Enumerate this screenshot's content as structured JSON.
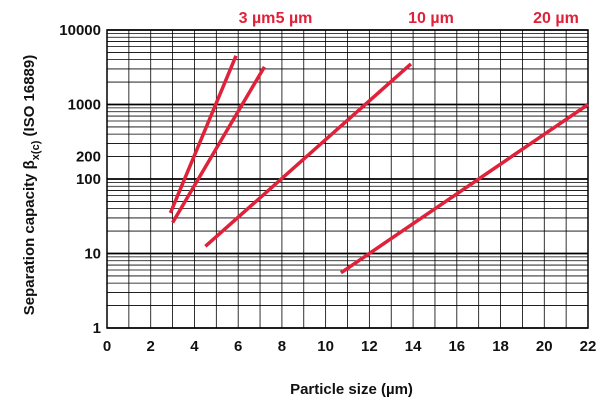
{
  "chart_data": {
    "type": "line",
    "xlabel": "Particle size (µm)",
    "ylabel_main": "Separation capacity β",
    "ylabel_sub": "x(c)",
    "ylabel_suffix": " (ISO 16889)",
    "x_scale": "linear",
    "y_scale": "log",
    "xlim": [
      0,
      22
    ],
    "ylim": [
      1,
      10000
    ],
    "x_ticks": [
      0,
      2,
      4,
      6,
      8,
      10,
      12,
      14,
      16,
      18,
      20,
      22
    ],
    "x_tick_labels": [
      "0",
      "2",
      "4",
      "6",
      "8",
      "10",
      "12",
      "14",
      "16",
      "18",
      "20",
      "22"
    ],
    "y_ticks": [
      1,
      10,
      100,
      200,
      1000,
      10000
    ],
    "y_tick_labels": [
      "1",
      "10",
      "100",
      "200",
      "1000",
      "10000"
    ],
    "grid": true,
    "line_color": "#e0213a",
    "series": [
      {
        "name": "3 µm",
        "points": [
          [
            2.9,
            35
          ],
          [
            5.9,
            4500
          ]
        ]
      },
      {
        "name": "5 µm",
        "points": [
          [
            3.0,
            26
          ],
          [
            7.2,
            3200
          ]
        ]
      },
      {
        "name": "10 µm",
        "points": [
          [
            4.5,
            12.5
          ],
          [
            13.9,
            3500
          ]
        ]
      },
      {
        "name": "20 µm",
        "points": [
          [
            10.7,
            5.5
          ],
          [
            22.0,
            1000
          ]
        ]
      }
    ]
  }
}
